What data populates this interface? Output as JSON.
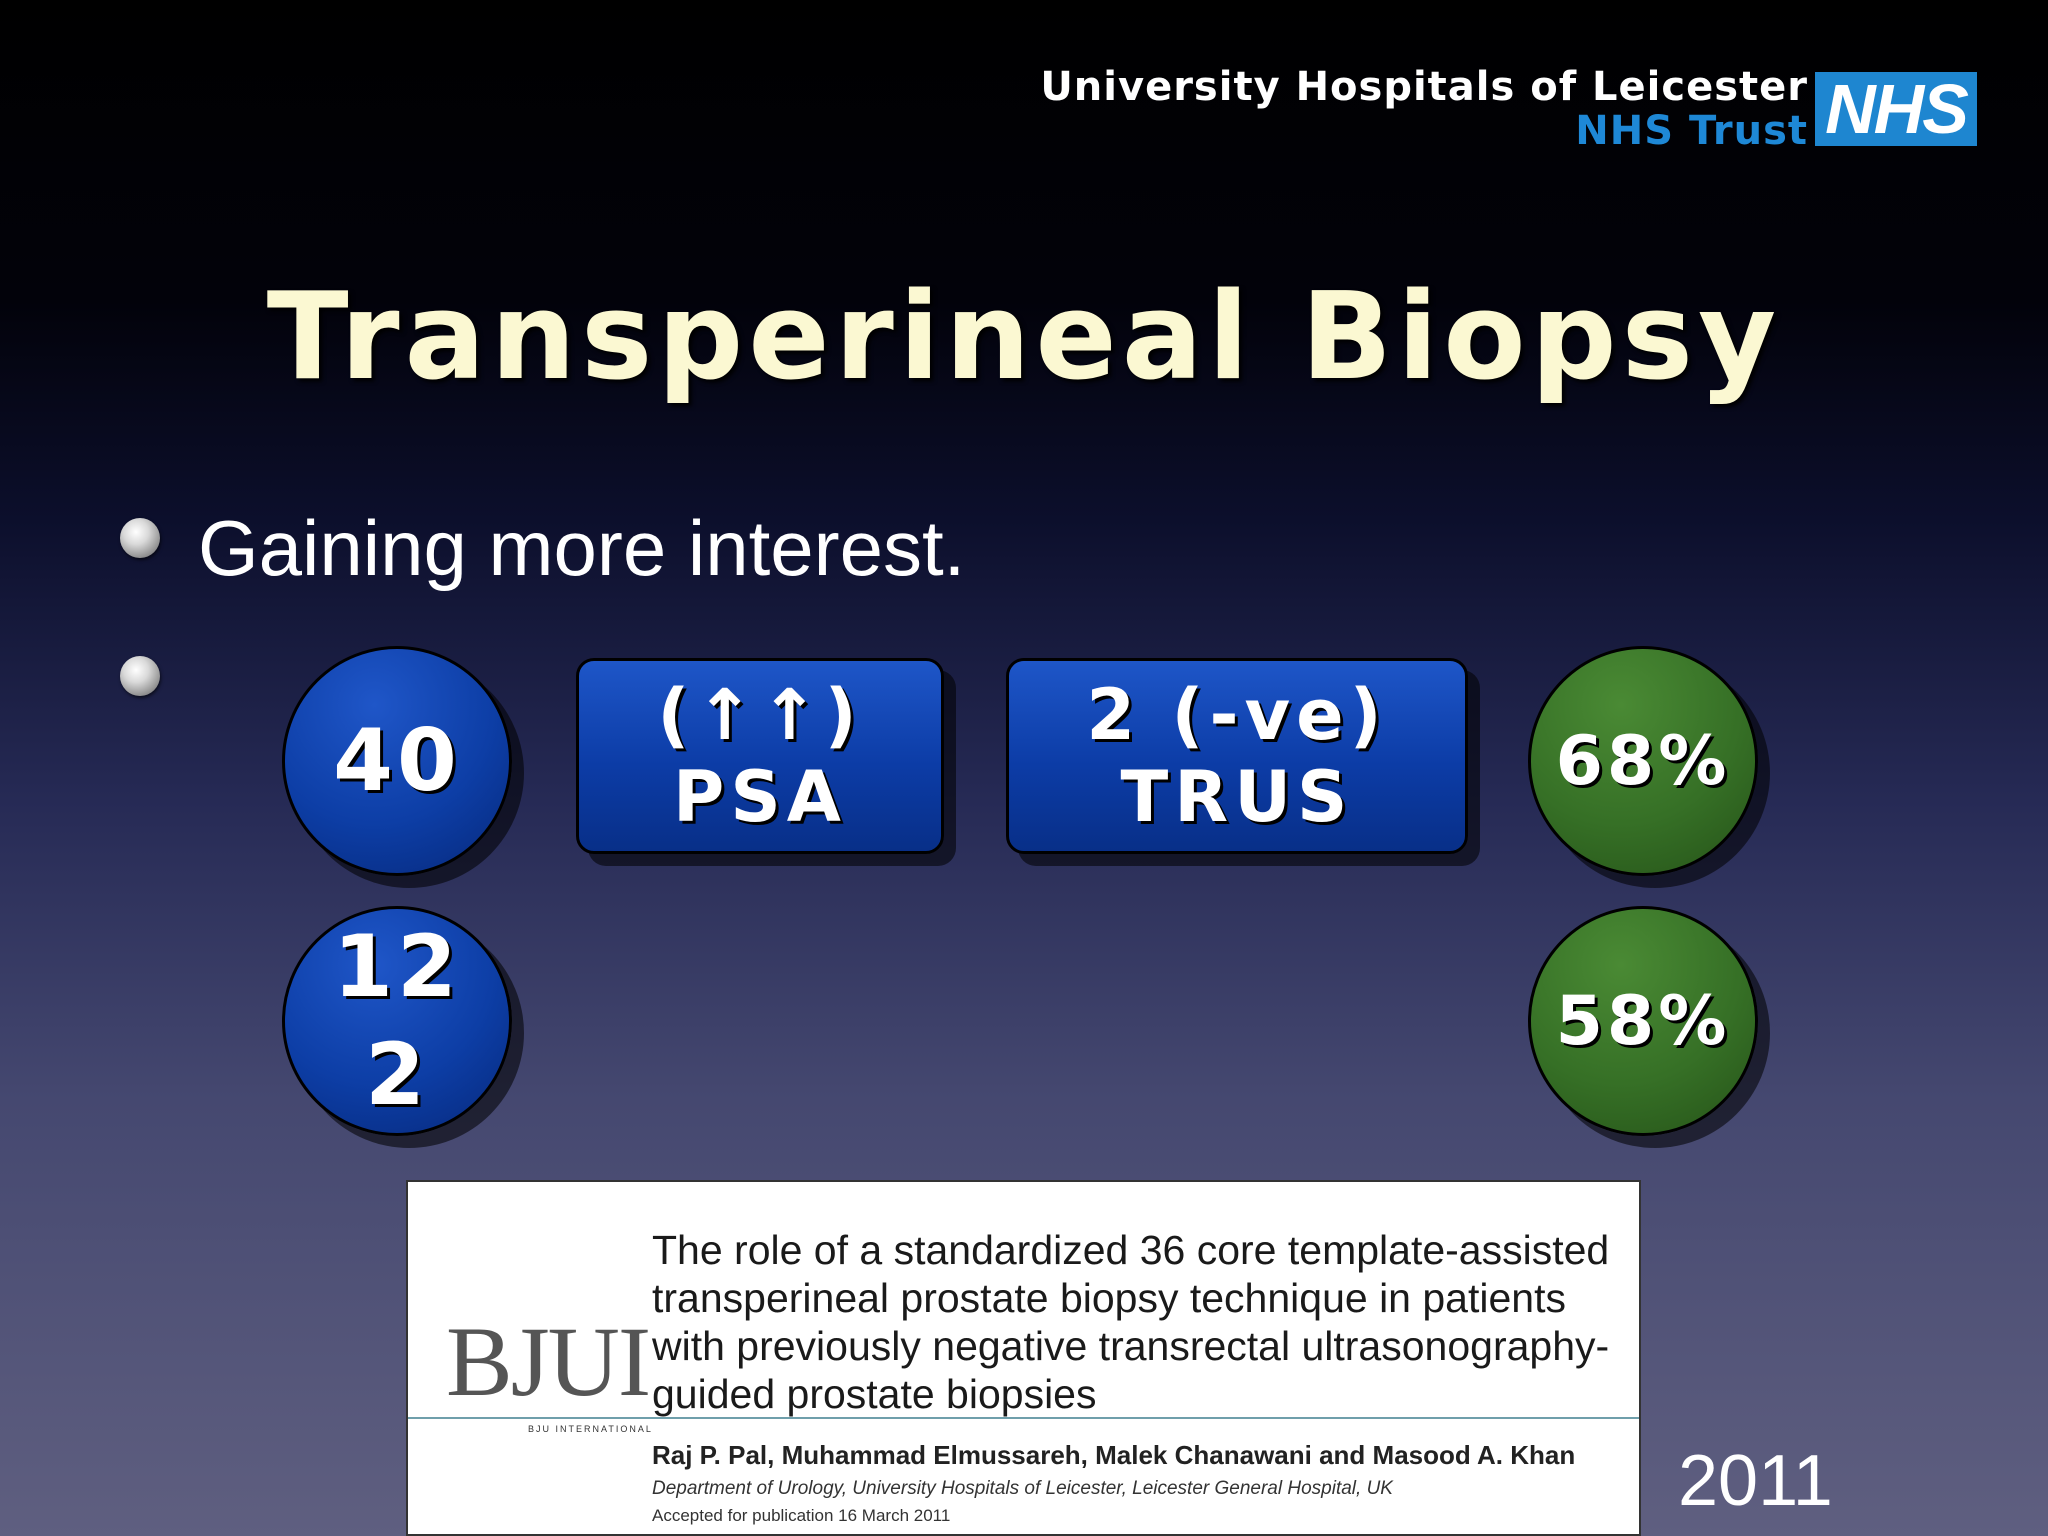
{
  "header": {
    "org_line1": "University Hospitals of Leicester",
    "org_line2": "NHS Trust",
    "logo": "NHS",
    "brand_color": "#1e86d0"
  },
  "slide": {
    "title": "Transperineal Biopsy",
    "bullets": [
      {
        "text": "Gaining more interest."
      },
      {
        "text": ""
      }
    ]
  },
  "stats": {
    "circle_a": {
      "line1": "40",
      "color": "#0d3ea6"
    },
    "box_psa": {
      "line1": "(↑↑)",
      "line2": "PSA",
      "color": "#0c3ca6"
    },
    "box_trus": {
      "line1": "2 (-ve)",
      "line2": "TRUS",
      "color": "#0c3ca6"
    },
    "circle_b": {
      "line1": "68%",
      "color": "#367026"
    },
    "circle_c": {
      "line1": "12",
      "line2": "2",
      "color": "#0d3ea6"
    },
    "circle_d": {
      "line1": "58%",
      "color": "#367026"
    }
  },
  "paper": {
    "journal": "BJUI",
    "journal_sub": "BJU INTERNATIONAL",
    "title": "The role of a standardized 36 core template-assisted transperineal prostate biopsy technique in patients with previously negative transrectal ultrasonography-guided prostate biopsies",
    "authors": "Raj P. Pal, Muhammad Elmussareh, Malek Chanawani and Masood A. Khan",
    "department": "Department of Urology, University Hospitals of Leicester, Leicester General Hospital, UK",
    "accepted": "Accepted for publication 16 March 2011"
  },
  "year": "2011"
}
